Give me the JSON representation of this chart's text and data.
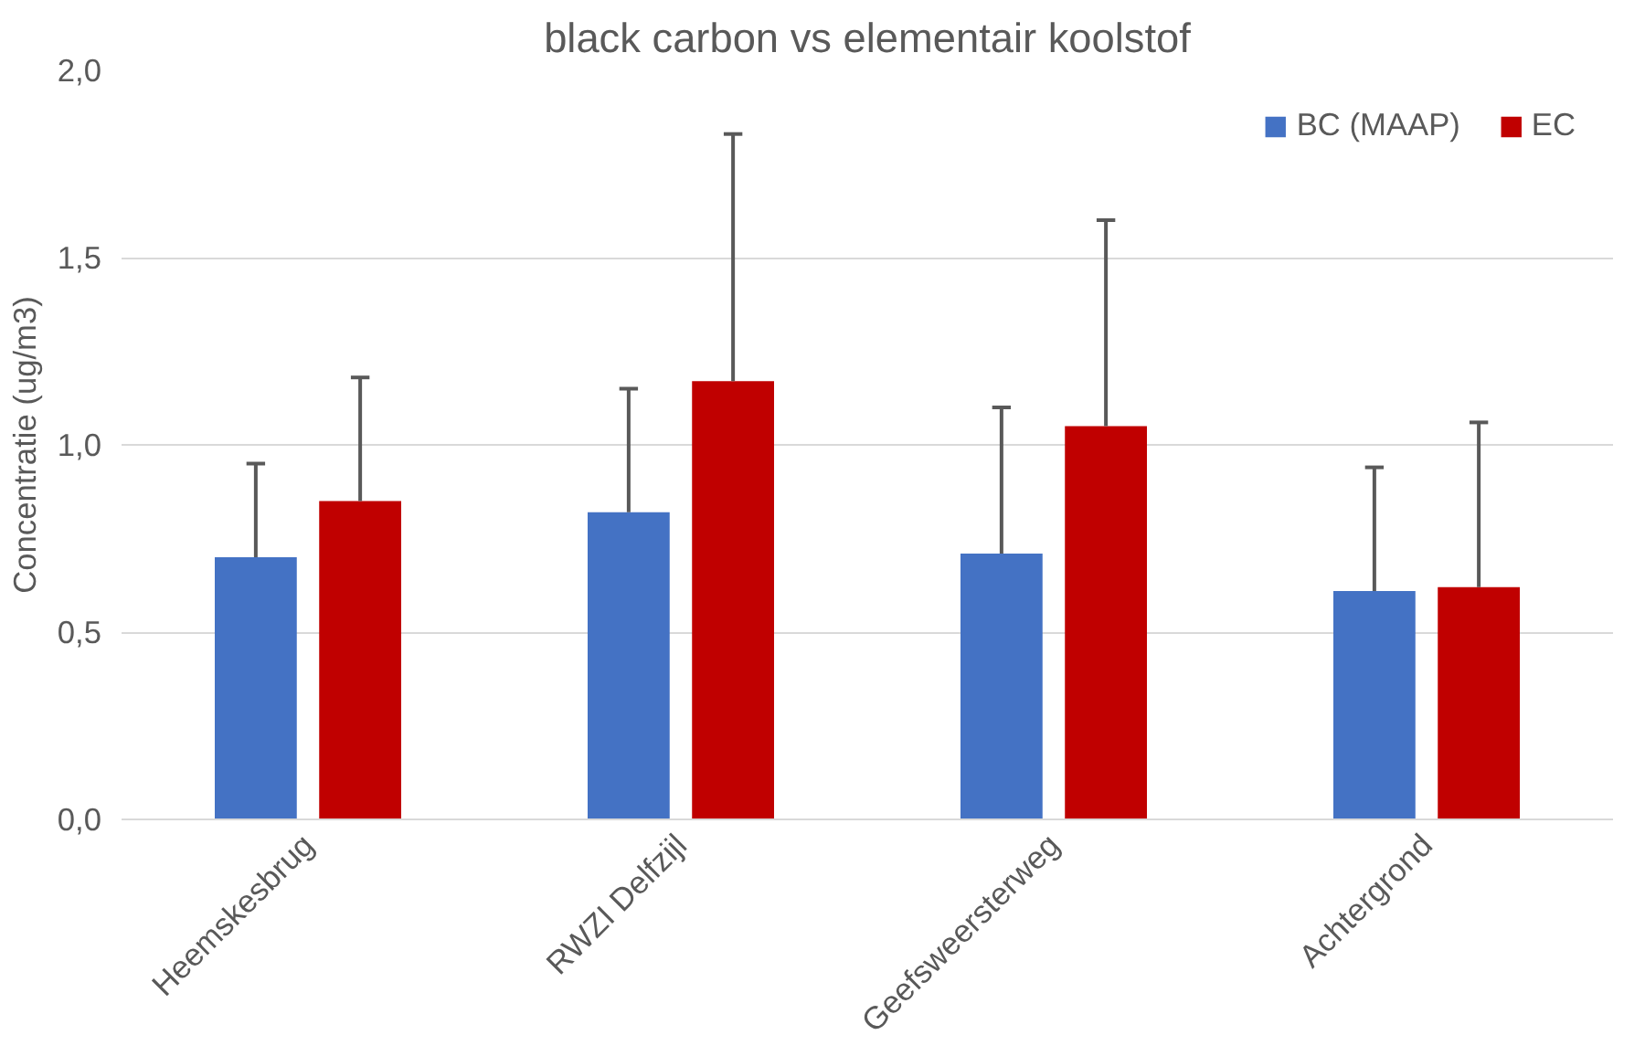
{
  "chart_data": {
    "type": "bar",
    "title": "black carbon vs elementair koolstof",
    "ylabel": "Concentratie (ug/m3)",
    "categories": [
      "Heemskesbrug",
      "RWZI Delfzijl",
      "Geefsweersterweg",
      "Achtergrond"
    ],
    "series": [
      {
        "name": "BC (MAAP)",
        "color": "#4472c4",
        "values": [
          0.7,
          0.82,
          0.71,
          0.61
        ],
        "errors": [
          [
            0.7,
            0.95
          ],
          [
            0.82,
            1.15
          ],
          [
            0.71,
            1.1
          ],
          [
            0.61,
            0.94
          ]
        ]
      },
      {
        "name": "EC",
        "color": "#c00000",
        "values": [
          0.85,
          1.17,
          1.05,
          0.62
        ],
        "errors": [
          [
            0.85,
            1.18
          ],
          [
            1.17,
            1.83
          ],
          [
            1.05,
            1.6
          ],
          [
            0.62,
            1.06
          ]
        ]
      }
    ],
    "ylim": [
      0,
      2
    ],
    "yticks": [
      {
        "value": 0,
        "label": "0,0"
      },
      {
        "value": 0.5,
        "label": "0,5"
      },
      {
        "value": 1,
        "label": "1,0"
      },
      {
        "value": 1.5,
        "label": "1,5"
      },
      {
        "value": 2,
        "label": "2,0"
      }
    ],
    "grid": "y",
    "legend": "top right"
  }
}
